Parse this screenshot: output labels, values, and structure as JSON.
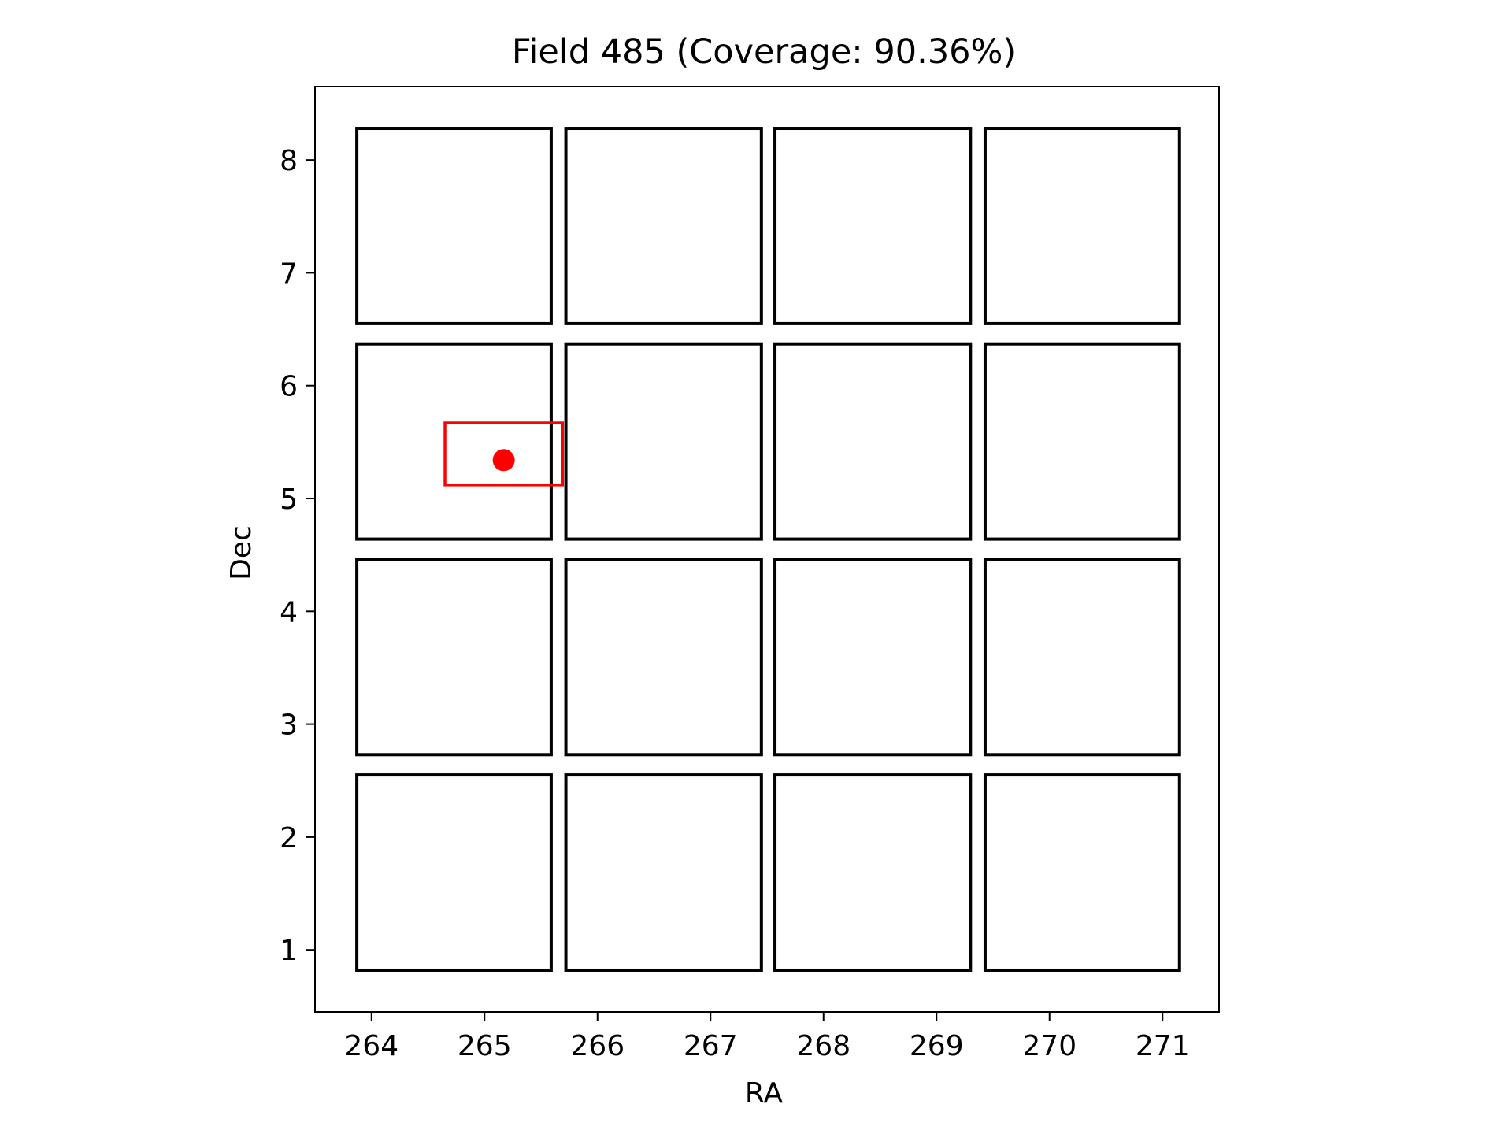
{
  "chart_data": {
    "type": "scatter",
    "title": "Field 485 (Coverage: 90.36%)",
    "xlabel": "RA",
    "ylabel": "Dec",
    "xlim": [
      263.5,
      271.5
    ],
    "ylim": [
      0.45,
      8.65
    ],
    "xticks": [
      264,
      265,
      266,
      267,
      268,
      269,
      270,
      271
    ],
    "yticks": [
      1,
      2,
      3,
      4,
      5,
      6,
      7,
      8
    ],
    "xtick_labels": [
      "264",
      "265",
      "266",
      "267",
      "268",
      "269",
      "270",
      "271"
    ],
    "ytick_labels": [
      "1",
      "2",
      "3",
      "4",
      "5",
      "6",
      "7",
      "8"
    ],
    "grid": false,
    "colors": {
      "tiles": "#000000",
      "target": "#ff0000"
    },
    "tiles": [
      {
        "x0": 263.87,
        "x1": 265.59,
        "y0": 6.55,
        "y1": 8.28
      },
      {
        "x0": 265.72,
        "x1": 267.45,
        "y0": 6.55,
        "y1": 8.28
      },
      {
        "x0": 267.57,
        "x1": 269.3,
        "y0": 6.55,
        "y1": 8.28
      },
      {
        "x0": 269.43,
        "x1": 271.15,
        "y0": 6.55,
        "y1": 8.28
      },
      {
        "x0": 263.87,
        "x1": 265.59,
        "y0": 4.64,
        "y1": 6.37
      },
      {
        "x0": 265.72,
        "x1": 267.45,
        "y0": 4.64,
        "y1": 6.37
      },
      {
        "x0": 267.57,
        "x1": 269.3,
        "y0": 4.64,
        "y1": 6.37
      },
      {
        "x0": 269.43,
        "x1": 271.15,
        "y0": 4.64,
        "y1": 6.37
      },
      {
        "x0": 263.87,
        "x1": 265.59,
        "y0": 2.73,
        "y1": 4.46
      },
      {
        "x0": 265.72,
        "x1": 267.45,
        "y0": 2.73,
        "y1": 4.46
      },
      {
        "x0": 267.57,
        "x1": 269.3,
        "y0": 2.73,
        "y1": 4.46
      },
      {
        "x0": 269.43,
        "x1": 271.15,
        "y0": 2.73,
        "y1": 4.46
      },
      {
        "x0": 263.87,
        "x1": 265.59,
        "y0": 0.82,
        "y1": 2.55
      },
      {
        "x0": 265.72,
        "x1": 267.45,
        "y0": 0.82,
        "y1": 2.55
      },
      {
        "x0": 267.57,
        "x1": 269.3,
        "y0": 0.82,
        "y1": 2.55
      },
      {
        "x0": 269.43,
        "x1": 271.15,
        "y0": 0.82,
        "y1": 2.55
      }
    ],
    "target_box": {
      "x0": 264.65,
      "x1": 265.69,
      "y0": 5.12,
      "y1": 5.67
    },
    "target_point": {
      "x": 265.17,
      "y": 5.34
    }
  }
}
